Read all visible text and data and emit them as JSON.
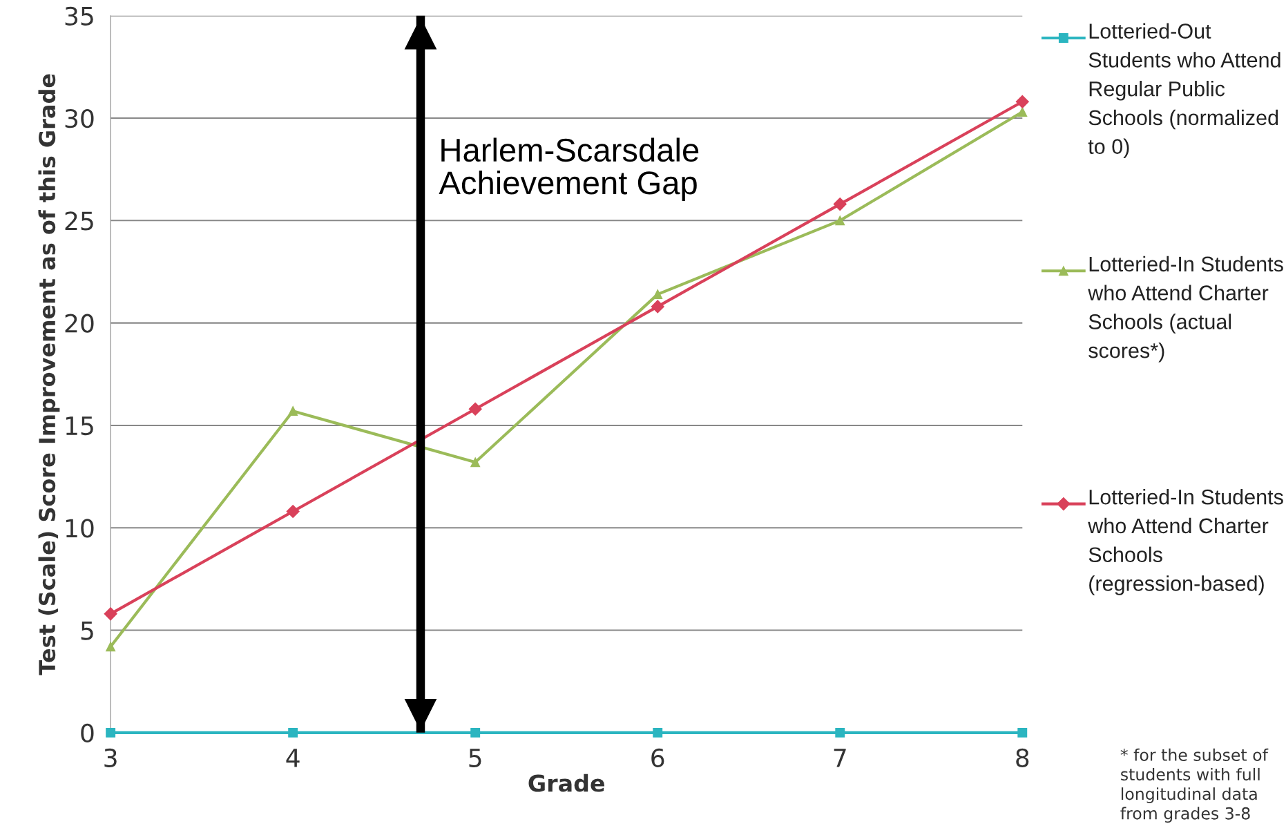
{
  "chart_data": {
    "type": "line",
    "xlabel": "Grade",
    "ylabel": "Test (Scale) Score Improvement as of this Grade",
    "x": [
      3,
      4,
      5,
      6,
      7,
      8
    ],
    "xlim": [
      3,
      8
    ],
    "xticks": [
      3,
      4,
      5,
      6,
      7,
      8
    ],
    "ylim": [
      0,
      35
    ],
    "yticks": [
      0,
      5,
      10,
      15,
      20,
      25,
      30,
      35
    ],
    "series": [
      {
        "name": "Lotteried-Out Students who Attend Regular Public Schools (normalized to 0)",
        "color": "#2bb5c0",
        "marker": "square",
        "values": [
          0,
          0,
          0,
          0,
          0,
          0
        ]
      },
      {
        "name": "Lotteried-In Students who Attend Charter Schools (actual scores*)",
        "color": "#9bbb59",
        "marker": "triangle",
        "values": [
          4.2,
          15.7,
          13.2,
          21.4,
          25.0,
          30.3
        ]
      },
      {
        "name": "Lotteried-In Students who Attend Charter Schools (regression-based)",
        "color": "#d9415a",
        "marker": "diamond",
        "values": [
          5.8,
          10.8,
          15.8,
          20.8,
          25.8,
          30.8
        ]
      }
    ],
    "ref_lines": [
      {
        "axis": "x",
        "value": 4.7,
        "label": "Harlem-Scarsdale\nAchievement Gap",
        "color": "#000000",
        "line_style": "solid"
      }
    ],
    "annotations": [
      "* for the subset of students with full longitudinal data from grades 3-8"
    ],
    "grid": "y",
    "legend": "right"
  }
}
